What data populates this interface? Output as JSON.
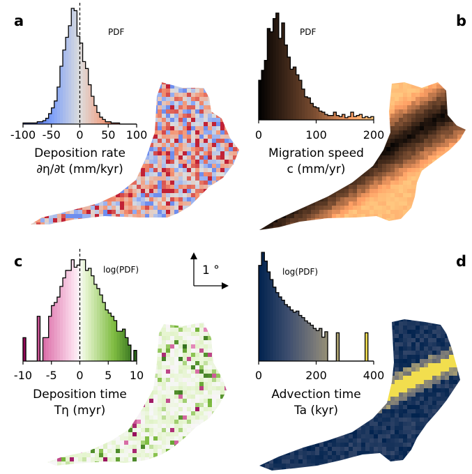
{
  "panel_labels": [
    "a",
    "b",
    "c",
    "d"
  ],
  "scale_label": "1 °",
  "chart_data": [
    {
      "type": "bar",
      "panel": "a",
      "histtype": "step-filled",
      "colormap": "coolwarm",
      "pdf_label": "PDF",
      "xlabel_line1": "Deposition rate",
      "xlabel_line2": "∂η/∂t (mm/kyr)",
      "xlim": [
        -100,
        100
      ],
      "xticks": [
        -100,
        -50,
        0,
        50,
        100
      ],
      "xtick_labels": [
        "-100",
        "-50",
        "0",
        "50",
        "100"
      ],
      "zero_line": 0,
      "bin_start": -100,
      "bin_width": 5,
      "values": [
        0.01,
        0.01,
        0.01,
        0.01,
        0.01,
        0.02,
        0.02,
        0.03,
        0.05,
        0.09,
        0.14,
        0.2,
        0.32,
        0.5,
        0.64,
        0.75,
        0.85,
        1.0,
        0.98,
        0.76,
        0.7,
        0.54,
        0.48,
        0.34,
        0.24,
        0.16,
        0.1,
        0.06,
        0.04,
        0.02,
        0.02,
        0.01,
        0.01,
        0.01,
        0.0,
        0.0,
        0.0,
        0.0,
        0.0,
        0.0
      ]
    },
    {
      "type": "bar",
      "panel": "b",
      "histtype": "step-filled",
      "colormap": "copper",
      "pdf_label": "PDF",
      "xlabel_line1": "Migration speed",
      "xlabel_line2": "c (mm/yr)",
      "xlim": [
        0,
        200
      ],
      "xticks": [
        0,
        100,
        200
      ],
      "xtick_labels": [
        "0",
        "100",
        "200"
      ],
      "bin_start": 0,
      "bin_width": 5,
      "values": [
        0.36,
        0.45,
        0.54,
        0.83,
        0.8,
        0.92,
        0.97,
        0.74,
        0.88,
        0.68,
        0.57,
        0.46,
        0.48,
        0.41,
        0.36,
        0.28,
        0.21,
        0.2,
        0.15,
        0.12,
        0.11,
        0.08,
        0.07,
        0.05,
        0.04,
        0.04,
        0.07,
        0.04,
        0.03,
        0.05,
        0.02,
        0.03,
        0.07,
        0.03,
        0.04,
        0.05,
        0.02,
        0.03,
        0.02,
        0.03
      ]
    },
    {
      "type": "bar",
      "panel": "c",
      "histtype": "step-filled",
      "colormap": "PiYG",
      "pdf_label": "log(PDF)",
      "xlabel_line1": "Deposition time",
      "xlabel_line2": "Tη (myr)",
      "xlim": [
        -10,
        10
      ],
      "xticks": [
        -10,
        -5,
        0,
        5,
        10
      ],
      "xtick_labels": [
        "-10",
        "-5",
        "0",
        "5",
        "10"
      ],
      "zero_line": 0,
      "bin_start": -10,
      "bin_width": 0.5,
      "values": [
        0.22,
        0.0,
        0.0,
        0.0,
        0.0,
        0.42,
        0.0,
        0.22,
        0.22,
        0.42,
        0.52,
        0.55,
        0.6,
        0.7,
        0.78,
        0.85,
        0.85,
        0.95,
        0.88,
        0.9,
        0.95,
        0.95,
        0.85,
        0.87,
        0.8,
        0.72,
        0.68,
        0.62,
        0.55,
        0.48,
        0.45,
        0.42,
        0.38,
        0.28,
        0.28,
        0.3,
        0.22,
        0.15,
        0.0,
        0.1
      ]
    },
    {
      "type": "bar",
      "panel": "d",
      "histtype": "step-filled",
      "colormap": "cividis",
      "pdf_label": "log(PDF)",
      "xlabel_line1": "Advection time",
      "xlabel_line2": "Ta (kyr)",
      "xlim": [
        0,
        400
      ],
      "xticks": [
        0,
        200,
        400
      ],
      "xtick_labels": [
        "0",
        "200",
        "400"
      ],
      "bin_start": 0,
      "bin_width": 10,
      "values": [
        0.88,
        1.0,
        0.92,
        0.82,
        0.75,
        0.68,
        0.63,
        0.59,
        0.56,
        0.52,
        0.5,
        0.47,
        0.45,
        0.46,
        0.42,
        0.4,
        0.37,
        0.35,
        0.33,
        0.3,
        0.28,
        0.3,
        0.22,
        0.27,
        0.0,
        0.0,
        0.0,
        0.26,
        0.0,
        0.0,
        0.0,
        0.0,
        0.0,
        0.0,
        0.0,
        0.0,
        0.0,
        0.26,
        0.0,
        0.0
      ]
    }
  ]
}
